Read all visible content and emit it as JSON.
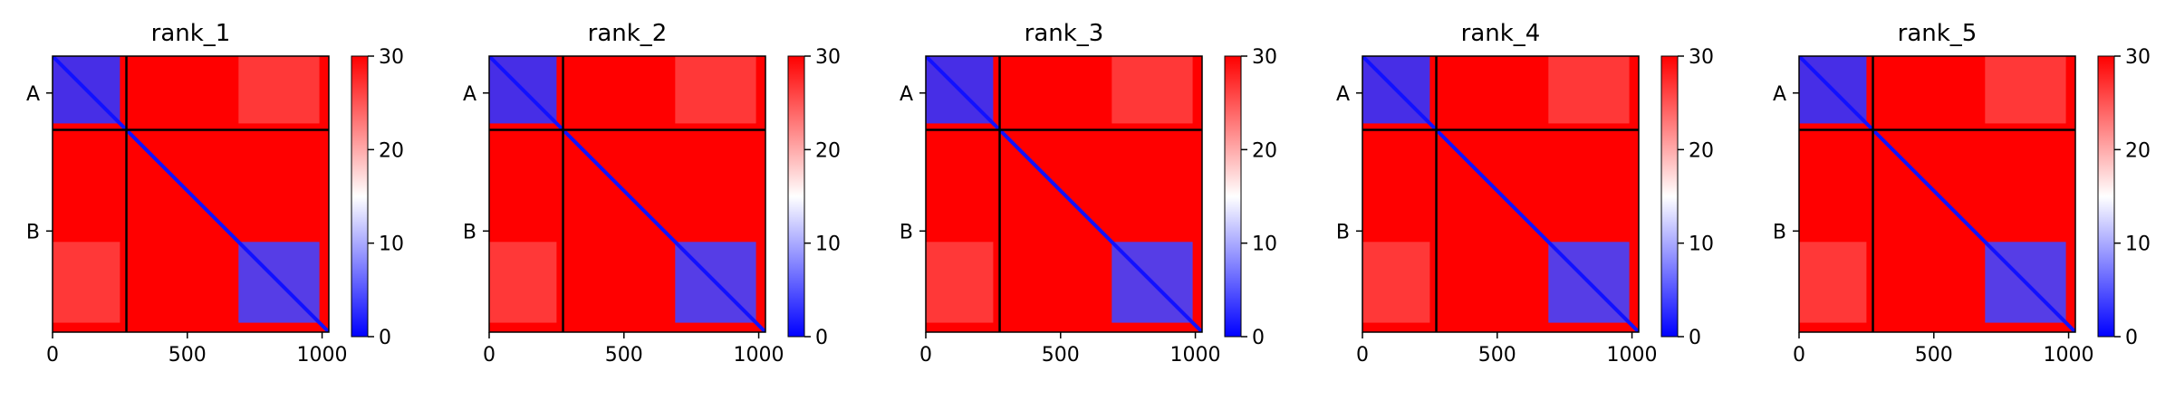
{
  "chart_data": {
    "type": "heatmap",
    "colormap": {
      "name": "bwr",
      "low_color": "#0000ff",
      "mid_color": "#ffffff",
      "high_color": "#ff0000",
      "range": [
        0,
        30
      ]
    },
    "colorbar_ticks": [
      "0",
      "10",
      "20",
      "30"
    ],
    "x_ticks": [
      {
        "value": 0,
        "label": "0"
      },
      {
        "value": 500,
        "label": "500"
      },
      {
        "value": 1000,
        "label": "1000"
      }
    ],
    "x_range": [
      0,
      1025
    ],
    "chains": [
      {
        "label": "A",
        "start": 0,
        "end": 274
      },
      {
        "label": "B",
        "start": 274,
        "end": 1025
      }
    ],
    "panels": [
      {
        "title": "rank_1"
      },
      {
        "title": "rank_2"
      },
      {
        "title": "rank_3"
      },
      {
        "title": "rank_4"
      },
      {
        "title": "rank_5"
      }
    ],
    "blocks": [
      {
        "x": [
          0,
          250
        ],
        "y": [
          0,
          250
        ],
        "value": 3,
        "note": "chain A intra-domain"
      },
      {
        "x": [
          690,
          990
        ],
        "y": [
          690,
          990
        ],
        "value": 4,
        "note": "chain B C-terminal domain"
      },
      {
        "x": [
          690,
          990
        ],
        "y": [
          0,
          250
        ],
        "value": 24,
        "note": "inter-chain A to B domain"
      },
      {
        "x": [
          0,
          250
        ],
        "y": [
          690,
          990
        ],
        "value": 24,
        "note": "inter-chain B domain to A"
      }
    ],
    "diagonal_value": 1,
    "background_value": 30
  }
}
